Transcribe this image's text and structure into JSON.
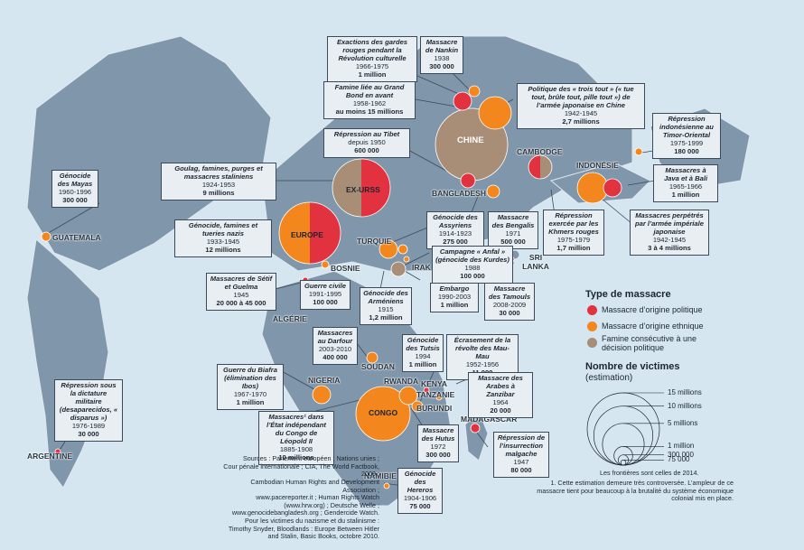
{
  "colors": {
    "ocean": "#d5e6f1",
    "land": "#7f96ab",
    "land_dark": "#5f7891",
    "political": "#e2323f",
    "ethnic": "#f3861c",
    "famine": "#a88e76",
    "box_bg": "#e9eef3"
  },
  "boxes": {
    "gardes_rouges": {
      "title": "Exactions des gardes rouges pendant la Révolution culturelle",
      "dates": "1966-1975",
      "victims": "1 million"
    },
    "nankin": {
      "title": "Massacre de Nankin",
      "dates": "1938",
      "victims": "300 000"
    },
    "trois_tout": {
      "title": "Politique des « trois tout » (« tue tout, brûle tout, pille tout ») de l’armée japonaise en Chine",
      "dates": "1942-1945",
      "victims": "2,7 millions"
    },
    "grand_bond": {
      "title": "Famine liée au Grand Bond en avant",
      "dates": "1958-1962",
      "victims": "au moins 15 millions"
    },
    "tibet": {
      "title": "Répression au Tibet",
      "dates": "depuis 1950",
      "victims": "600 000"
    },
    "timor": {
      "title": "Répression indonésienne au Timor-Oriental",
      "dates": "1975-1999",
      "victims": "180 000"
    },
    "goulag": {
      "title": "Goulag, famines, purges et massacres staliniens",
      "dates": "1924-1953",
      "victims": "9 millions"
    },
    "java": {
      "title": "Massacres à Java et à Bali",
      "dates": "1965-1966",
      "victims": "1 million"
    },
    "mayas": {
      "title": "Génocide des Mayas",
      "dates": "1960-1996",
      "victims": "300 000"
    },
    "nazis": {
      "title": "Génocide, famines et tueries nazis",
      "dates": "1933-1945",
      "victims": "12 millions"
    },
    "assyriens": {
      "title": "Génocide des Assyriens",
      "dates": "1914-1923",
      "victims": "275 000"
    },
    "bengalis": {
      "title": "Massacre des Bengalis",
      "dates": "1971",
      "victims": "500 000"
    },
    "khmers": {
      "title": "Répression exercée par les Khmers rouges",
      "dates": "1975-1979",
      "victims": "1,7 million"
    },
    "japonaise": {
      "title": "Massacres perpétrés par l’armée impériale japonaise",
      "dates": "1942-1945",
      "victims": "3 à 4 millions"
    },
    "anfal": {
      "title": "Campagne « Anfal » (génocide des Kurdes)",
      "dates": "1988",
      "victims": "100 000"
    },
    "setif": {
      "title": "Massacres de Sétif et Guelma",
      "dates": "1945",
      "victims": "20 000 à 45 000"
    },
    "bosnie": {
      "title": "Guerre civile",
      "dates": "1991-1995",
      "victims": "100 000"
    },
    "embargo": {
      "title": "Embargo",
      "dates": "1990-2003",
      "victims": "1 million"
    },
    "armeniens": {
      "title": "Génocide des Arméniens",
      "dates": "1915",
      "victims": "1,2 million"
    },
    "tamouls": {
      "title": "Massacre des Tamouls",
      "dates": "2008-2009",
      "victims": "30 000"
    },
    "darfour": {
      "title": "Massacres au Darfour",
      "dates": "2003-2010",
      "victims": "400 000"
    },
    "tutsis": {
      "title": "Génocide des Tutsis",
      "dates": "1994",
      "victims": "1 million"
    },
    "maumau": {
      "title": "Écrasement de la révolte des Mau-Mau",
      "dates": "1952-1956",
      "victims": "11 000"
    },
    "biafra": {
      "title": "Guerre du Biafra (élimination des Ibos)",
      "dates": "1967-1970",
      "victims": "1 million"
    },
    "zanzibar": {
      "title": "Massacre des Arabes à Zanzibar",
      "dates": "1964",
      "victims": "20 000"
    },
    "argentine": {
      "title": "Répression sous la dictature militaire (desaparecidos, « disparus »)",
      "dates": "1976-1989",
      "victims": "30 000"
    },
    "congo": {
      "title": "Massacres¹ dans l’État indépendant du Congo de Léopold II",
      "dates": "1885-1908",
      "victims": "10 millions"
    },
    "hutus": {
      "title": "Massacre des Hutus",
      "dates": "1972",
      "victims": "300 000"
    },
    "malgache": {
      "title": "Répression de l’insurrection malgache",
      "dates": "1947",
      "victims": "80 000"
    },
    "hereros": {
      "title": "Génocide des Hereros",
      "dates": "1904-1906",
      "victims": "75 000"
    }
  },
  "countries": {
    "chine": "CHINE",
    "exurss": "EX-URSS",
    "europe": "EUROPE",
    "congo": "CONGO",
    "cambodge": "CAMBODGE",
    "indonesie": "INDONÉSIE",
    "bangladesh": "BANGLADESH",
    "guatemala": "GUATEMALA",
    "turquie": "TURQUIE",
    "irak": "IRAK",
    "srilanka": "SRI LANKA",
    "bosnie": "BOSNIE",
    "algerie": "ALGÉRIE",
    "soudan": "SOUDAN",
    "nigeria": "NIGERIA",
    "rwanda": "RWANDA",
    "kenya": "KENYA",
    "tanzanie": "TANZANIE",
    "burundi": "BURUNDI",
    "madagascar": "MADAGASCAR",
    "namibie": "NAMIBIE",
    "argentine": "ARGENTINE"
  },
  "legend": {
    "type_title": "Type de massacre",
    "political": "Massacre d’origine politique",
    "ethnic": "Massacre d’origine ethnique",
    "famine": "Famine consécutive à une décision politique",
    "victims_title": "Nombre de victimes",
    "victims_sub": "(estimation)",
    "scale": [
      {
        "label": "15 millions",
        "value": 15000000
      },
      {
        "label": "10 millions",
        "value": 10000000
      },
      {
        "label": "5 millions",
        "value": 5000000
      },
      {
        "label": "1 million",
        "value": 1000000
      },
      {
        "label": "300 000",
        "value": 300000
      },
      {
        "label": "75 000",
        "value": 75000
      }
    ],
    "borders_note": "Les frontières sont celles de 2014.",
    "note1": "1. Cette estimation demeure très controversée. L’ampleur de ce massacre tient pour beaucoup à la brutalité du système économique colonial mis en place."
  },
  "sources": [
    "Sources : Parlement européen ; Nations unies ;",
    "Cour pénale internationale ; CIA, The World Factbook, 2009 ;",
    "Cambodian Human Rights and Development Association ;",
    "www.pacereporter.it ; Human Rights Watch (www.hrw.org) ; Deutsche Welle ;",
    "www.genocidebangladesh.org ; Gendercide Watch. Pour les victimes du nazisme et du stalinisme :",
    "Timothy Snyder, Bloodlands : Europe Between Hitler and Stalin, Basic Books, octobre 2010."
  ]
}
